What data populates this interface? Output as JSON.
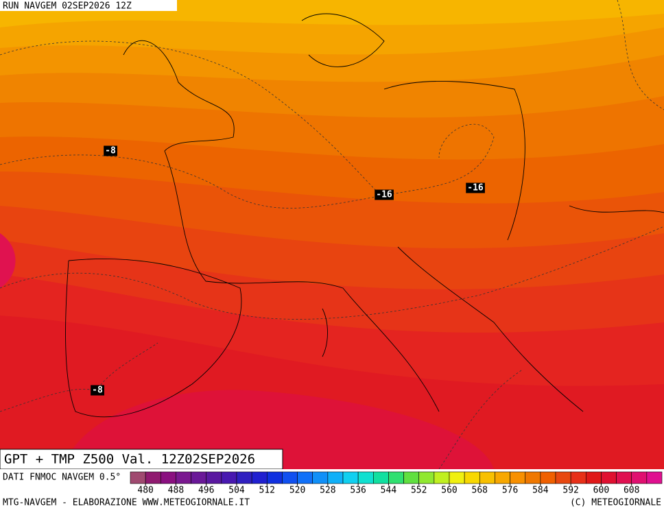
{
  "header": {
    "run": "RUN NAVGEM 02SEP2026 12Z"
  },
  "map": {
    "product": "GPT + TMP Z500 Val. 12Z02SEP2026",
    "temp_labels": [
      -8,
      -16,
      -16,
      -8
    ]
  },
  "colorbar": {
    "source": "DATI FNMOC NAVGEM 0.5°",
    "ticks": [
      480,
      488,
      496,
      504,
      512,
      520,
      528,
      536,
      544,
      552,
      560,
      568,
      576,
      584,
      592,
      600,
      608
    ],
    "colors": [
      "#a04a70",
      "#901a70",
      "#8a1080",
      "#7a1890",
      "#6a1898",
      "#5a18a0",
      "#4818b0",
      "#3020c0",
      "#2020d0",
      "#1030e0",
      "#1050f0",
      "#1070f8",
      "#1090f8",
      "#10b0f8",
      "#10d0f0",
      "#10e0d0",
      "#10e0a0",
      "#30e070",
      "#60e040",
      "#90e830",
      "#c0f020",
      "#f0f010",
      "#f8d800",
      "#f8c000",
      "#f8a800",
      "#f89000",
      "#f07800",
      "#f06000",
      "#e84810",
      "#e83018",
      "#e01818",
      "#e01030",
      "#e01050",
      "#e01070",
      "#e01090"
    ]
  },
  "footer": {
    "left": "MTG-NAVGEM - ELABORAZIONE WWW.METEOGIORNALE.IT",
    "right": "(C) METEOGIORNALE"
  }
}
